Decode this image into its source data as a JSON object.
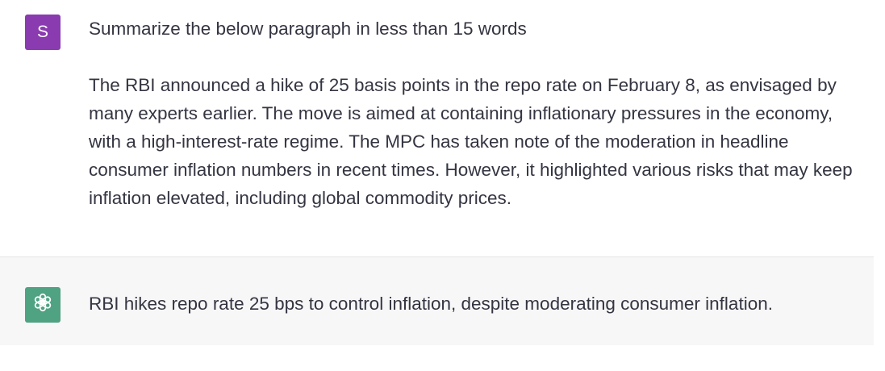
{
  "conversation": {
    "user_message": {
      "avatar_letter": "S",
      "avatar_color": "#8a3bb0",
      "instruction": "Summarize the below paragraph in less than 15 words",
      "paragraph": "The RBI announced a hike of 25 basis points in the repo rate on February 8, as envisaged by many experts earlier. The move is aimed at containing inflationary pressures in the economy, with a high-interest-rate regime. The MPC has taken note of the moderation in headline consumer inflation numbers in recent times. However, it highlighted various risks that may keep inflation elevated, including global commodity prices."
    },
    "assistant_message": {
      "avatar_icon": "openai-logo-icon",
      "avatar_color": "#4fa282",
      "text": "RBI hikes repo rate 25 bps to control inflation, despite moderating consumer inflation."
    }
  }
}
